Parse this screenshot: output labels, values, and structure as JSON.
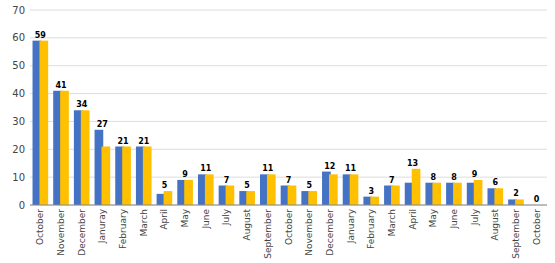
{
  "chart_data": {
    "type": "bar",
    "categories": [
      "October",
      "November",
      "December",
      "Januray",
      "February",
      "March",
      "April",
      "May",
      "June",
      "July",
      "August",
      "September",
      "October",
      "November",
      "December",
      "January",
      "February",
      "March",
      "April",
      "May",
      "June",
      "July",
      "August",
      "September",
      "October"
    ],
    "series": [
      {
        "color": "#4472C4",
        "values": [
          59,
          41,
          34,
          27,
          21,
          21,
          4,
          9,
          11,
          7,
          5,
          11,
          7,
          5,
          12,
          11,
          3,
          7,
          8,
          8,
          8,
          8,
          6,
          2,
          0
        ]
      },
      {
        "color": "#FFC000",
        "values": [
          59,
          41,
          34,
          21,
          21,
          21,
          5,
          9,
          11,
          7,
          5,
          11,
          7,
          5,
          11,
          11,
          3,
          7,
          13,
          8,
          8,
          9,
          6,
          2,
          0
        ]
      }
    ],
    "bar_labels": [
      59,
      41,
      34,
      27,
      21,
      21,
      5,
      9,
      11,
      7,
      5,
      11,
      7,
      5,
      12,
      11,
      3,
      7,
      13,
      8,
      8,
      9,
      6,
      2,
      0
    ],
    "ylim": [
      0,
      70
    ],
    "yticks": [
      0,
      10,
      20,
      30,
      40,
      50,
      60,
      70
    ],
    "grid": true
  }
}
